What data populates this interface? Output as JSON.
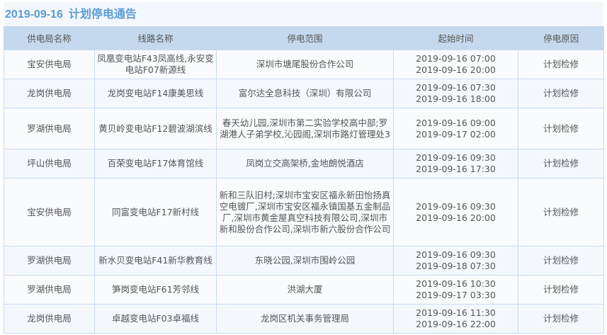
{
  "title": {
    "date": "2019-09-16",
    "text": "计划停电通告"
  },
  "columns": [
    "供电局名称",
    "线路名称",
    "停电范围",
    "起始时间",
    "停电原因"
  ],
  "rows": [
    {
      "bureau": "宝安供电局",
      "line": "凤凰变电站F43凤高线,永安变电站F07新源线",
      "area": "深圳市塘尾股份合作公司",
      "start": "2019-09-16 07:00",
      "end": "2019-09-16 20:00",
      "reason": "计划检修"
    },
    {
      "bureau": "龙岗供电局",
      "line": "龙岗变电站F14康美思线",
      "area": "富尔达全息科技（深圳）有限公司",
      "start": "2019-09-16 07:30",
      "end": "2019-09-16 18:00",
      "reason": "计划检修"
    },
    {
      "bureau": "罗湖供电局",
      "line": "黄贝岭变电站F12碧波湖滨线",
      "area": "春天幼儿园,深圳市第二实验学校高中部;罗湖港人子弟学校,沁园阁,深圳市路灯管理处3",
      "start": "2019-09-16 09:00",
      "end": "2019-09-17 02:00",
      "reason": "计划检修"
    },
    {
      "bureau": "坪山供电局",
      "line": "百荣变电站F17体育馆线",
      "area": "凤岗立交高架桥,金地朗悦酒店",
      "start": "2019-09-16 09:30",
      "end": "2019-09-16 17:30",
      "reason": "计划检修"
    },
    {
      "bureau": "宝安供电局",
      "line": "同富变电站F17新村线",
      "area": "新和三队旧村;深圳市宝安区福永新田怡扬真空电镀厂,深圳市宝安区福永镇国基五金制品厂,深圳市黄金屋真空科技有限公司,深圳市新和股份合作公司,深圳市新六股份合作公司",
      "start": "2019-09-16 09:30",
      "end": "2019-09-16 20:00",
      "reason": "计划检修"
    },
    {
      "bureau": "罗湖供电局",
      "line": "新水贝变电站F41新华教育线",
      "area": "东晓公园,深圳市围岭公园",
      "start": "2019-09-16 09:30",
      "end": "2019-09-18 07:30",
      "reason": "计划检修"
    },
    {
      "bureau": "罗湖供电局",
      "line": "笋岗变电站F61芳邻线",
      "area": "洪湖大厦",
      "start": "2019-09-16 10:30",
      "end": "2019-09-17 03:30",
      "reason": "计划检修"
    },
    {
      "bureau": "龙岗供电局",
      "line": "卓越变电站F03卓福线",
      "area": "龙岗区机关事务管理局",
      "start": "2019-09-16 11:30",
      "end": "2019-09-16 22:00",
      "reason": "计划检修"
    }
  ]
}
